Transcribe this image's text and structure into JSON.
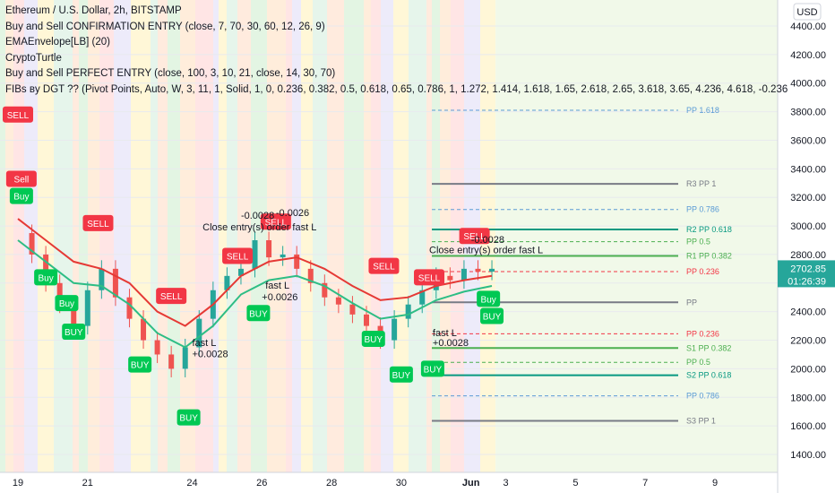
{
  "legend": {
    "title": "Ethereum / U.S. Dollar, 2h, BITSTAMP",
    "indicators": [
      "Buy and Sell CONFIRMATION ENTRY (close, 7, 70, 30, 60, 12, 26, 9)",
      "EMAEnvelope[LB] (20)",
      "CryptoTurtle",
      "Buy and Sell PERFECT ENTRY (close, 100, 3, 10, 21, close, 14, 30, 70)",
      "FIBs вy DGT ?? (Pivot Points, Auto, W, 3, 11, 1, Solid, 1, 0, 0.236, 0.382, 0.5, 0.618, 0.65, 0.786, 1, 1.272, 1.414, 1.618, 1.65, 2.618, 2.65, 3.618, 3.65, 4.236, 4.618, -0.236"
    ]
  },
  "price_axis": {
    "currency": "USD",
    "current_price": "2702.85",
    "countdown": "01:26:39"
  },
  "chart_data": {
    "type": "candlestick",
    "x_ticks": [
      "19",
      "21",
      "24",
      "26",
      "28",
      "30",
      "Jun",
      "3",
      "5",
      "7",
      "9"
    ],
    "y_ticks": [
      "1400.00",
      "1600.00",
      "1800.00",
      "2000.00",
      "2200.00",
      "2400.00",
      "2600.00",
      "2800.00",
      "3000.00",
      "3200.00",
      "3400.00",
      "3600.00",
      "3800.00",
      "4000.00",
      "4200.00",
      "4400.00"
    ],
    "ylim": [
      1300,
      4500
    ],
    "close_path": [
      [
        19.0,
        2950
      ],
      [
        19.4,
        2800
      ],
      [
        19.8,
        2600
      ],
      [
        20.2,
        2450
      ],
      [
        20.6,
        2300
      ],
      [
        21.0,
        2550
      ],
      [
        21.4,
        2700
      ],
      [
        21.8,
        2500
      ],
      [
        22.2,
        2350
      ],
      [
        22.6,
        2200
      ],
      [
        23.0,
        2100
      ],
      [
        23.4,
        2000
      ],
      [
        23.8,
        2150
      ],
      [
        24.2,
        2350
      ],
      [
        24.6,
        2550
      ],
      [
        25.0,
        2650
      ],
      [
        25.4,
        2700
      ],
      [
        25.8,
        2900
      ],
      [
        26.2,
        2780
      ],
      [
        26.6,
        2800
      ],
      [
        27.0,
        2700
      ],
      [
        27.4,
        2600
      ],
      [
        27.8,
        2500
      ],
      [
        28.2,
        2450
      ],
      [
        28.6,
        2380
      ],
      [
        29.0,
        2300
      ],
      [
        29.4,
        2200
      ],
      [
        29.8,
        2350
      ],
      [
        30.2,
        2450
      ],
      [
        30.6,
        2550
      ],
      [
        31.0,
        2650
      ],
      [
        31.4,
        2620
      ],
      [
        31.8,
        2700
      ],
      [
        32.2,
        2680
      ],
      [
        32.6,
        2700
      ]
    ],
    "ema_red": [
      [
        19.0,
        3050
      ],
      [
        19.8,
        2900
      ],
      [
        20.6,
        2750
      ],
      [
        21.4,
        2700
      ],
      [
        22.2,
        2600
      ],
      [
        23.0,
        2400
      ],
      [
        23.8,
        2300
      ],
      [
        24.6,
        2450
      ],
      [
        25.4,
        2650
      ],
      [
        26.2,
        2750
      ],
      [
        27.0,
        2780
      ],
      [
        27.8,
        2700
      ],
      [
        28.6,
        2580
      ],
      [
        29.4,
        2480
      ],
      [
        30.2,
        2500
      ],
      [
        31.0,
        2580
      ],
      [
        31.8,
        2620
      ],
      [
        32.6,
        2650
      ]
    ],
    "ema_green": [
      [
        19.0,
        2900
      ],
      [
        19.8,
        2750
      ],
      [
        20.6,
        2600
      ],
      [
        21.4,
        2580
      ],
      [
        22.2,
        2450
      ],
      [
        23.0,
        2250
      ],
      [
        23.8,
        2150
      ],
      [
        24.6,
        2300
      ],
      [
        25.4,
        2520
      ],
      [
        26.2,
        2620
      ],
      [
        27.0,
        2650
      ],
      [
        27.8,
        2580
      ],
      [
        28.6,
        2460
      ],
      [
        29.4,
        2350
      ],
      [
        30.2,
        2380
      ],
      [
        31.0,
        2480
      ],
      [
        31.8,
        2540
      ],
      [
        32.6,
        2580
      ]
    ],
    "pivot_lines": [
      {
        "label": "PP 1.618",
        "value": 3810,
        "color": "#5b9bd5",
        "dashed": true
      },
      {
        "label": "R3 PP 1",
        "value": 3295,
        "color": "#787b86",
        "dashed": false
      },
      {
        "label": "PP 0.786",
        "value": 3115,
        "color": "#5b9bd5",
        "dashed": true
      },
      {
        "label": "R2 PP 0.618",
        "value": 2975,
        "color": "#089981",
        "dashed": false
      },
      {
        "label": "PP 0.5",
        "value": 2890,
        "color": "#4caf50",
        "dashed": true
      },
      {
        "label": "R1 PP 0.382",
        "value": 2790,
        "color": "#4caf50",
        "dashed": false
      },
      {
        "label": "PP 0.236",
        "value": 2680,
        "color": "#f23645",
        "dashed": true
      },
      {
        "label": "PP",
        "value": 2465,
        "color": "#787b86",
        "dashed": false
      },
      {
        "label": "PP 0.236",
        "value": 2245,
        "color": "#f23645",
        "dashed": true
      },
      {
        "label": "S1 PP 0.382",
        "value": 2145,
        "color": "#4caf50",
        "dashed": false
      },
      {
        "label": "PP 0.5",
        "value": 2045,
        "color": "#4caf50",
        "dashed": true
      },
      {
        "label": "S2 PP 0.618",
        "value": 1955,
        "color": "#089981",
        "dashed": false
      },
      {
        "label": "PP 0.786",
        "value": 1810,
        "color": "#5b9bd5",
        "dashed": true
      },
      {
        "label": "S3 PP 1",
        "value": 1635,
        "color": "#787b86",
        "dashed": false
      }
    ],
    "signals": [
      {
        "type": "SELL",
        "x": 19.0,
        "y": 3780
      },
      {
        "type": "Sell",
        "x": 19.1,
        "y": 3330
      },
      {
        "type": "Buy",
        "x": 19.1,
        "y": 3210
      },
      {
        "type": "SELL",
        "x": 21.3,
        "y": 3020
      },
      {
        "type": "Buy",
        "x": 19.8,
        "y": 2640
      },
      {
        "type": "Buy",
        "x": 20.4,
        "y": 2460
      },
      {
        "type": "BUY",
        "x": 20.6,
        "y": 2260
      },
      {
        "type": "SELL",
        "x": 23.4,
        "y": 2510
      },
      {
        "type": "BUY",
        "x": 22.5,
        "y": 2030
      },
      {
        "type": "BUY",
        "x": 23.9,
        "y": 1660
      },
      {
        "type": "SELL",
        "x": 25.3,
        "y": 2790
      },
      {
        "type": "SELL",
        "x": 26.4,
        "y": 3030
      },
      {
        "type": "BUY",
        "x": 25.9,
        "y": 2390
      },
      {
        "type": "SELL",
        "x": 29.5,
        "y": 2720
      },
      {
        "type": "BUY",
        "x": 29.2,
        "y": 2210
      },
      {
        "type": "BUY",
        "x": 30.0,
        "y": 1960
      },
      {
        "type": "SELL",
        "x": 30.8,
        "y": 2640
      },
      {
        "type": "BUY",
        "x": 30.9,
        "y": 2000
      },
      {
        "type": "SELL",
        "x": 32.1,
        "y": 2930
      },
      {
        "type": "BUY",
        "x": 32.6,
        "y": 2370
      },
      {
        "type": "Buy",
        "x": 32.5,
        "y": 2490
      }
    ],
    "annotations": [
      {
        "text": "Close entry(s) order fast L",
        "x": 24.3,
        "y": 2970
      },
      {
        "text": "-0.0026",
        "x": 26.4,
        "y": 3070
      },
      {
        "text": "-0.0028",
        "x": 25.4,
        "y": 3050
      },
      {
        "text": "fast L",
        "x": 26.1,
        "y": 2560
      },
      {
        "text": "+0.0026",
        "x": 26.0,
        "y": 2480
      },
      {
        "text": "fast L",
        "x": 24.0,
        "y": 2160
      },
      {
        "text": "+0.0028",
        "x": 24.0,
        "y": 2080
      },
      {
        "text": "Close entry(s) order fast L",
        "x": 30.8,
        "y": 2810
      },
      {
        "text": "-0.0028",
        "x": 32.0,
        "y": 2880
      },
      {
        "text": "fast L",
        "x": 30.9,
        "y": 2230
      },
      {
        "text": "+0.0028",
        "x": 30.9,
        "y": 2160
      }
    ]
  }
}
